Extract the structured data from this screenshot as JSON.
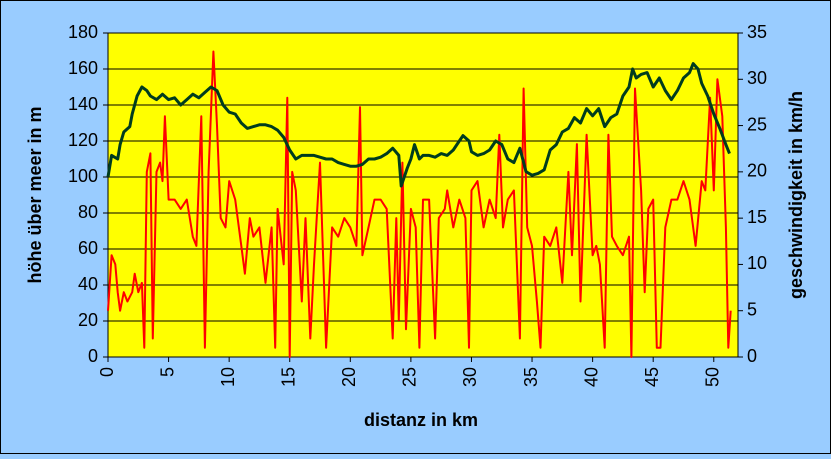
{
  "chart_data": {
    "type": "line",
    "xlabel": "distanz in km",
    "ylabel": "höhe über meer in m",
    "y2label": "geschwindigkeit in km/h",
    "xlim": [
      0,
      52
    ],
    "xticks": [
      0,
      5,
      10,
      15,
      20,
      25,
      30,
      35,
      40,
      45,
      50
    ],
    "ylim": [
      0,
      180
    ],
    "yticks": [
      0,
      20,
      40,
      60,
      80,
      100,
      120,
      140,
      160,
      180
    ],
    "y2lim": [
      0,
      35
    ],
    "y2ticks": [
      0,
      5,
      10,
      15,
      20,
      25,
      30,
      35
    ],
    "grid": true,
    "series": [
      {
        "name": "höhe",
        "color": "#003c1e",
        "x": [
          0,
          0.3,
          0.8,
          1,
          1.3,
          1.8,
          2,
          2.4,
          2.8,
          3.2,
          3.5,
          4,
          4.5,
          5,
          5.5,
          6,
          6.5,
          7,
          7.5,
          8,
          8.5,
          9,
          9.5,
          10,
          10.5,
          11,
          11.5,
          12,
          12.5,
          13,
          13.5,
          14,
          14.5,
          15,
          15.5,
          16,
          16.5,
          17,
          17.5,
          18,
          18.5,
          19,
          19.5,
          20,
          20.5,
          21,
          21.5,
          22,
          22.5,
          23,
          23.5,
          24,
          24.2,
          24.7,
          25,
          25.3,
          25.7,
          26,
          26.5,
          27,
          27.5,
          28,
          28.5,
          29,
          29.3,
          29.8,
          30,
          30.5,
          31,
          31.5,
          32,
          32.5,
          33,
          33.5,
          34,
          34.5,
          35,
          35.5,
          36,
          36.5,
          37,
          37.5,
          38,
          38.5,
          39,
          39.5,
          40,
          40.5,
          41,
          41.5,
          42,
          42.5,
          43,
          43.3,
          43.6,
          44,
          44.5,
          45,
          45.5,
          46,
          46.5,
          47,
          47.5,
          48,
          48.3,
          48.7,
          49,
          49.5,
          50,
          50.5,
          51,
          51.3
        ],
        "values": [
          100,
          112,
          110,
          118,
          125,
          128,
          135,
          145,
          150,
          148,
          145,
          143,
          146,
          143,
          144,
          140,
          143,
          146,
          144,
          147,
          150,
          148,
          140,
          136,
          135,
          130,
          127,
          128,
          129,
          129,
          128,
          126,
          122,
          115,
          110,
          112,
          112,
          112,
          111,
          110,
          110,
          108,
          107,
          106,
          106,
          107,
          110,
          110,
          111,
          113,
          116,
          112,
          95,
          105,
          110,
          118,
          110,
          112,
          112,
          111,
          113,
          112,
          115,
          120,
          123,
          120,
          114,
          112,
          113,
          115,
          120,
          118,
          110,
          108,
          116,
          103,
          101,
          102,
          104,
          115,
          118,
          125,
          127,
          133,
          130,
          138,
          134,
          138,
          128,
          133,
          135,
          145,
          150,
          160,
          155,
          157,
          158,
          150,
          155,
          148,
          143,
          148,
          155,
          158,
          163,
          160,
          152,
          145,
          135,
          127,
          118,
          113
        ]
      },
      {
        "name": "geschwindigkeit",
        "color": "#ff0000",
        "axis": "y2",
        "x": [
          0,
          0.3,
          0.6,
          0.8,
          1,
          1.3,
          1.6,
          2,
          2.2,
          2.5,
          2.8,
          3,
          3.2,
          3.5,
          3.7,
          4,
          4.3,
          4.5,
          4.7,
          5,
          5.5,
          6,
          6.5,
          7,
          7.3,
          7.7,
          8,
          8.3,
          8.7,
          9,
          9.3,
          9.7,
          10,
          10.5,
          11,
          11.3,
          11.7,
          12,
          12.5,
          13,
          13.5,
          13.8,
          14,
          14.5,
          14.8,
          15,
          15.2,
          15.5,
          16,
          16.3,
          16.7,
          17,
          17.5,
          18,
          18.5,
          19,
          19.5,
          20,
          20.5,
          20.8,
          21,
          21.5,
          22,
          22.5,
          23,
          23.5,
          23.8,
          24,
          24.3,
          24.6,
          25,
          25.4,
          25.7,
          26,
          26.5,
          27,
          27.3,
          27.8,
          28,
          28.5,
          29,
          29.5,
          29.8,
          30,
          30.5,
          31,
          31.5,
          32,
          32.3,
          32.6,
          33,
          33.5,
          34,
          34.3,
          34.6,
          35,
          35.4,
          35.7,
          36,
          36.5,
          37,
          37.5,
          38,
          38.3,
          38.7,
          39,
          39.5,
          40,
          40.3,
          40.6,
          41,
          41.3,
          41.6,
          42,
          42.5,
          43,
          43.2,
          43.5,
          44,
          44.3,
          44.6,
          45,
          45.3,
          45.6,
          46,
          46.5,
          47,
          47.5,
          48,
          48.5,
          49,
          49.3,
          49.7,
          50,
          50.3,
          50.7,
          51,
          51.2,
          51.4
        ],
        "values": [
          5,
          11,
          10,
          7,
          5,
          7,
          6,
          7,
          9,
          7,
          8,
          1,
          20,
          22,
          2,
          20,
          21,
          19,
          26,
          17,
          17,
          16,
          17,
          13,
          12,
          26,
          1,
          20,
          33,
          25,
          15,
          14,
          19,
          17,
          12,
          9,
          15,
          13,
          14,
          8,
          14,
          1,
          16,
          10,
          28,
          0,
          20,
          18,
          6,
          15,
          2,
          10,
          21,
          1,
          14,
          13,
          15,
          14,
          12,
          27,
          11,
          14,
          17,
          17,
          16,
          2,
          15,
          4,
          21,
          3,
          16,
          14,
          1,
          17,
          17,
          2,
          15,
          16,
          18,
          14,
          17,
          15,
          1,
          18,
          19,
          14,
          17,
          15,
          24,
          14,
          17,
          18,
          2,
          29,
          14,
          12,
          6,
          1,
          13,
          12,
          14,
          8,
          20,
          11,
          23,
          6,
          24,
          11,
          12,
          10,
          1,
          24,
          13,
          12,
          11,
          13,
          0,
          29,
          18,
          7,
          16,
          17,
          1,
          1,
          14,
          17,
          17,
          19,
          17,
          12,
          19,
          18,
          28,
          18,
          30,
          26,
          14,
          1,
          5
        ]
      }
    ]
  }
}
